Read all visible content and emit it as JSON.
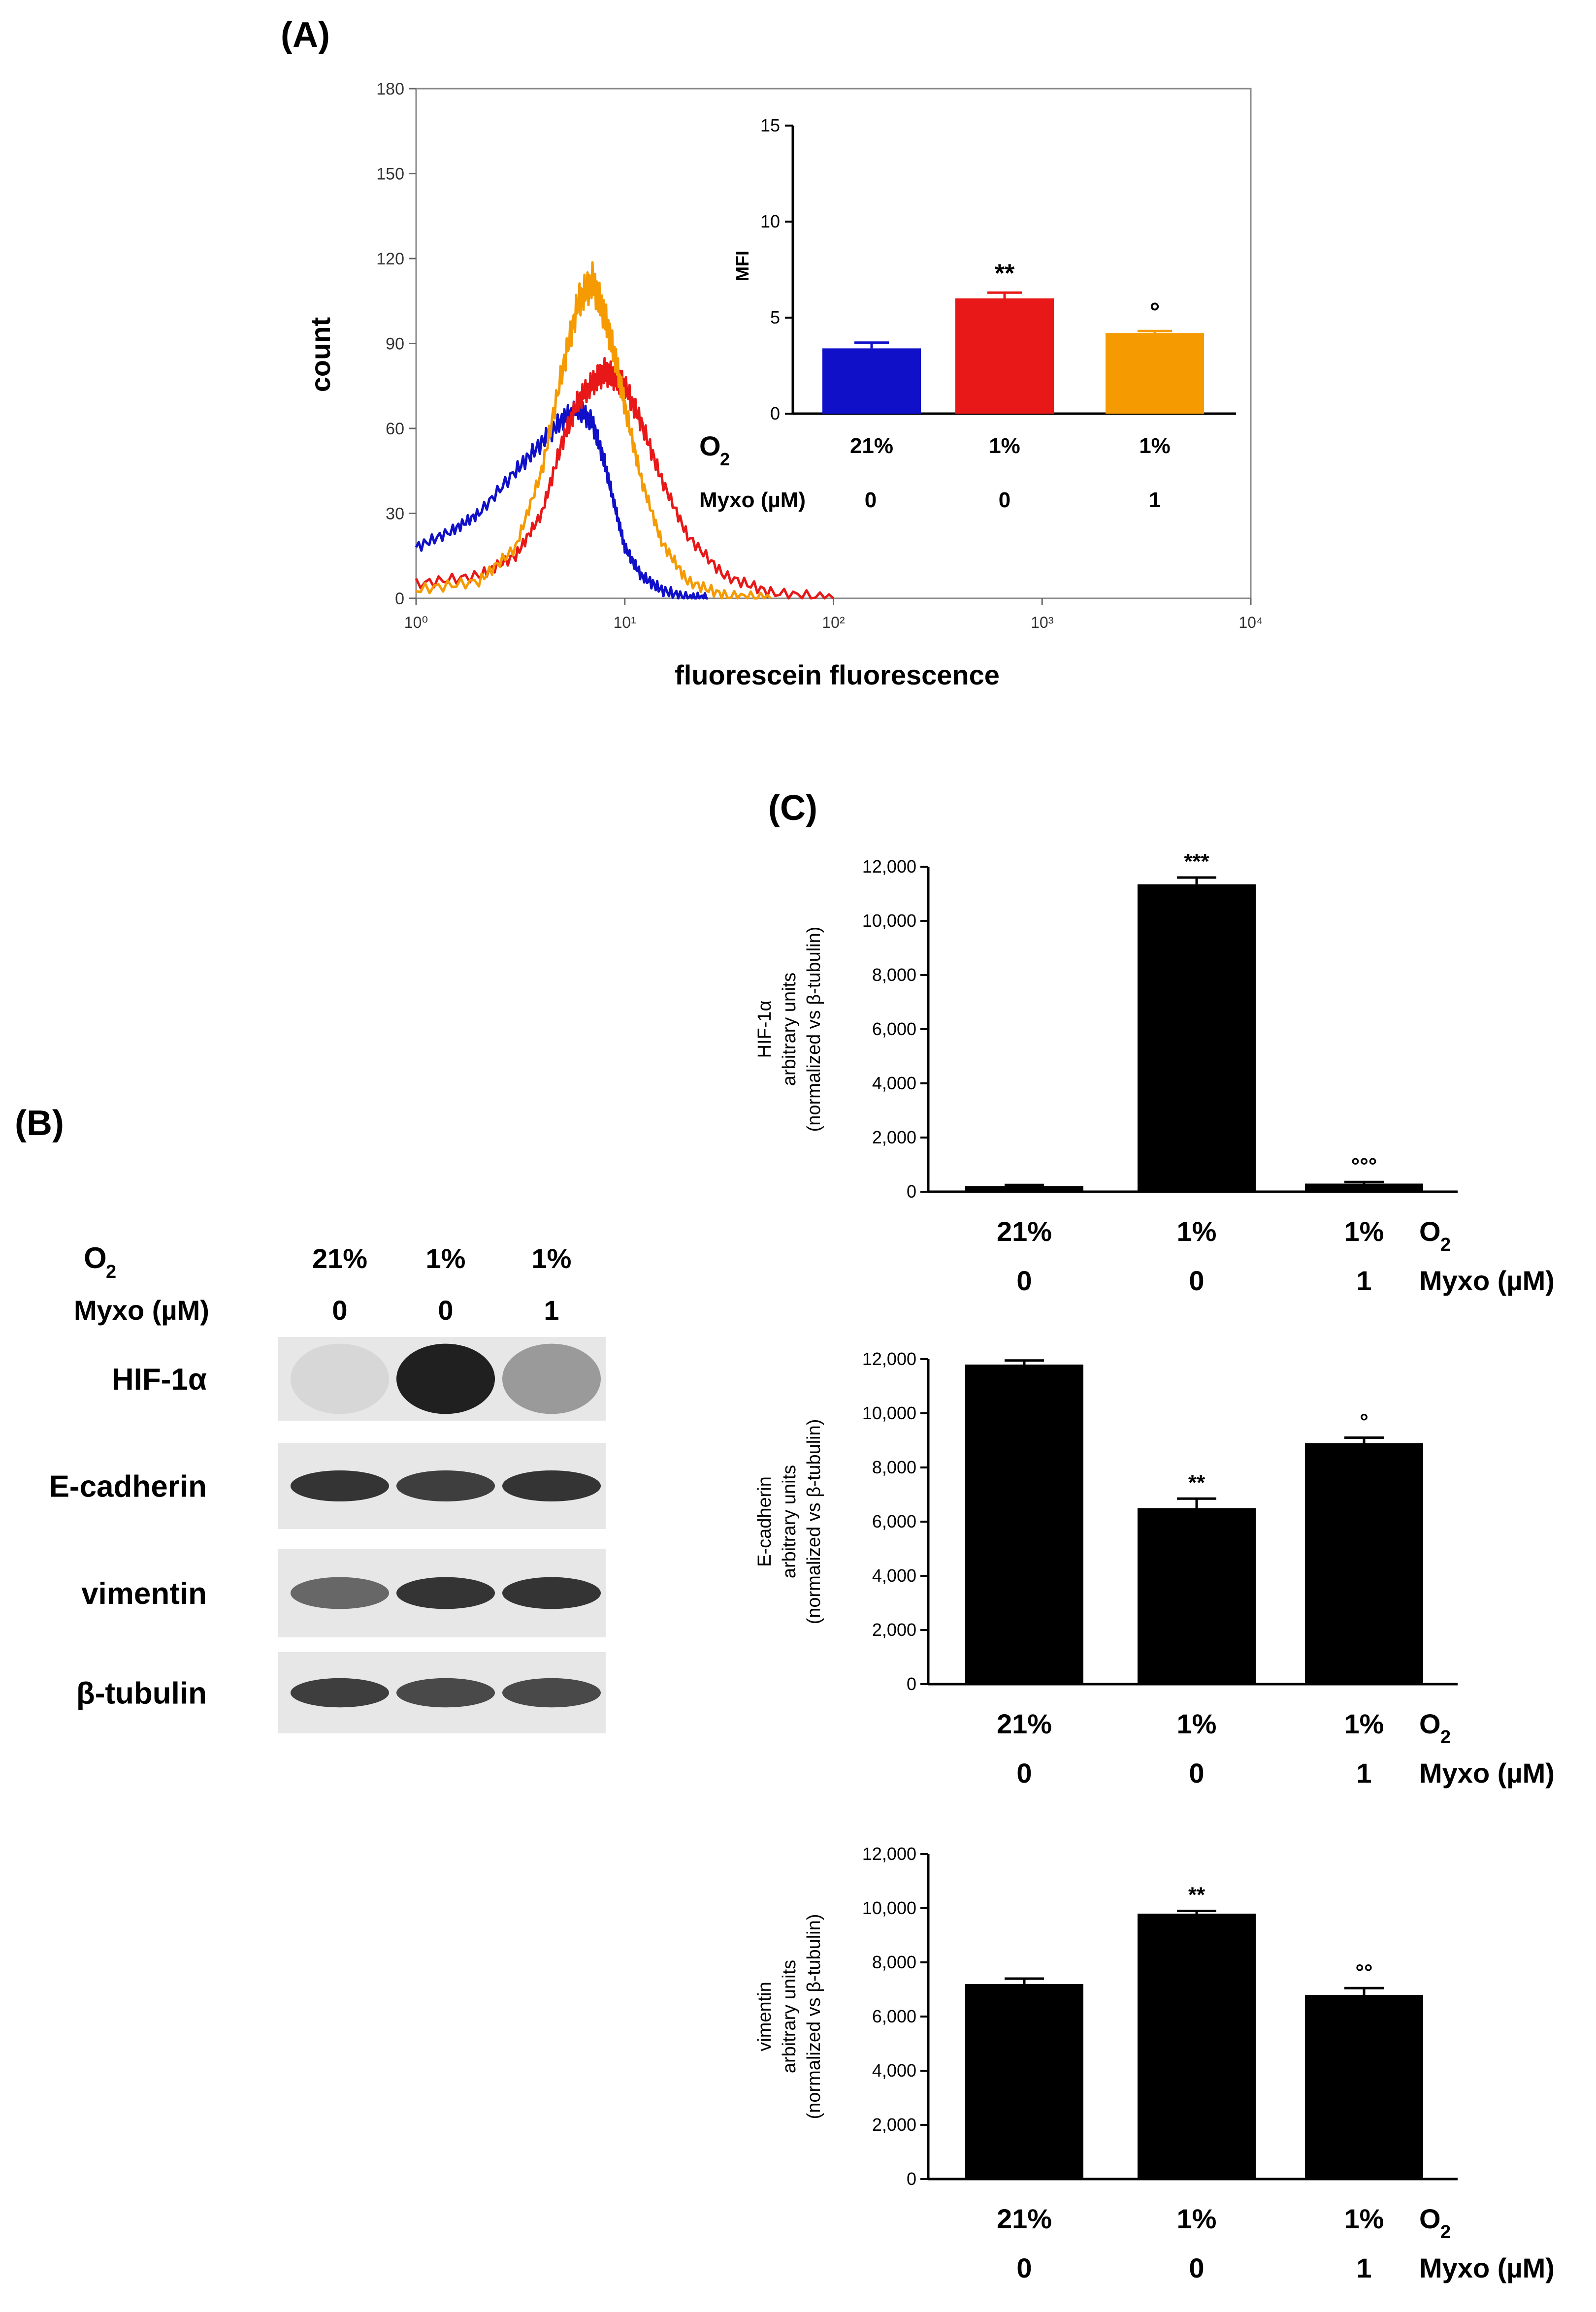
{
  "panels": {
    "a": "(A)",
    "b": "(B)",
    "c": "(C)"
  },
  "colors": {
    "blue": "#1010c8",
    "red": "#e81818",
    "orange": "#f59a00",
    "black": "#000000"
  },
  "chart_data": [
    {
      "id": "A-histogram",
      "type": "line",
      "title": "",
      "xlabel": "fluorescein fluorescence",
      "ylabel": "count",
      "xscale": "log",
      "xlim": [
        1,
        10000
      ],
      "ylim": [
        0,
        180
      ],
      "x_tick_labels": [
        "10⁰",
        "10¹",
        "10²",
        "10³",
        "10⁴"
      ],
      "y_ticks": [
        "0",
        "30",
        "60",
        "90",
        "120",
        "150",
        "180"
      ],
      "series": [
        {
          "name": "21% O2, Myxo 0",
          "color": "#1010c8",
          "x": [
            1,
            1.5,
            2,
            3,
            4,
            5,
            6,
            7,
            8,
            9,
            10,
            12,
            15,
            20,
            25
          ],
          "y": [
            18,
            24,
            30,
            45,
            55,
            63,
            67,
            62,
            48,
            32,
            18,
            8,
            3,
            0,
            0
          ]
        },
        {
          "name": "1% O2, Myxo 0",
          "color": "#e81818",
          "x": [
            1,
            2,
            3,
            4,
            5,
            6,
            7,
            8,
            9,
            10,
            12,
            15,
            20,
            30,
            50,
            100
          ],
          "y": [
            5,
            8,
            15,
            30,
            55,
            70,
            76,
            80,
            78,
            75,
            62,
            42,
            22,
            8,
            2,
            0
          ]
        },
        {
          "name": "1% O2, Myxo 1",
          "color": "#f59a00",
          "x": [
            1,
            2,
            3,
            4,
            5,
            6,
            7,
            8,
            9,
            10,
            12,
            15,
            20,
            30,
            50
          ],
          "y": [
            3,
            6,
            18,
            45,
            80,
            105,
            112,
            100,
            85,
            68,
            42,
            20,
            6,
            1,
            0
          ]
        }
      ]
    },
    {
      "id": "A-inset-MFI",
      "type": "bar",
      "ylabel": "MFI",
      "ylim": [
        0,
        15
      ],
      "y_ticks": [
        "0",
        "5",
        "10",
        "15"
      ],
      "categories": [
        "21%",
        "1%",
        "1%"
      ],
      "row_labels": {
        "o2": "O",
        "o2_sub": "2",
        "myxo": "Myxo (µM)"
      },
      "myxo": [
        "0",
        "0",
        "1"
      ],
      "values": [
        3.4,
        6.0,
        4.2
      ],
      "errors": [
        0.3,
        0.3,
        0.1
      ],
      "bar_colors": [
        "#1010c8",
        "#e81818",
        "#f59a00"
      ],
      "annotations": [
        "",
        "**",
        "°"
      ]
    },
    {
      "id": "C-HIF1a",
      "type": "bar",
      "ylabel_lines": [
        "HIF-1α",
        "arbitrary units",
        "(normalized vs β-tubulin)"
      ],
      "ylim": [
        0,
        12000
      ],
      "y_ticks": [
        "0",
        "2,000",
        "4,000",
        "6,000",
        "8,000",
        "10,000",
        "12,000"
      ],
      "categories": [
        "21%",
        "1%",
        "1%"
      ],
      "myxo": [
        "0",
        "0",
        "1"
      ],
      "values": [
        200,
        11350,
        300
      ],
      "errors": [
        50,
        250,
        60
      ],
      "annotations": [
        "",
        "***",
        "°°°"
      ],
      "row_labels": {
        "o2": "O",
        "o2_sub": "2",
        "myxo": "Myxo (µM)"
      }
    },
    {
      "id": "C-Ecadherin",
      "type": "bar",
      "ylabel_lines": [
        "E-cadherin",
        "arbitrary units",
        "(normalized vs β-tubulin)"
      ],
      "ylim": [
        0,
        12000
      ],
      "y_ticks": [
        "0",
        "2,000",
        "4,000",
        "6,000",
        "8,000",
        "10,000",
        "12,000"
      ],
      "categories": [
        "21%",
        "1%",
        "1%"
      ],
      "myxo": [
        "0",
        "0",
        "1"
      ],
      "values": [
        11800,
        6500,
        8900
      ],
      "errors": [
        150,
        350,
        200
      ],
      "annotations": [
        "",
        "**",
        "°"
      ],
      "row_labels": {
        "o2": "O",
        "o2_sub": "2",
        "myxo": "Myxo (µM)"
      }
    },
    {
      "id": "C-vimentin",
      "type": "bar",
      "ylabel_lines": [
        "vimentin",
        "arbitrary units",
        "(normalized vs β-tubulin)"
      ],
      "ylim": [
        0,
        12000
      ],
      "y_ticks": [
        "0",
        "2,000",
        "4,000",
        "6,000",
        "8,000",
        "10,000",
        "12,000"
      ],
      "categories": [
        "21%",
        "1%",
        "1%"
      ],
      "myxo": [
        "0",
        "0",
        "1"
      ],
      "values": [
        7200,
        9800,
        6800
      ],
      "errors": [
        200,
        100,
        250
      ],
      "annotations": [
        "",
        "**",
        "°°"
      ],
      "row_labels": {
        "o2": "O",
        "o2_sub": "2",
        "myxo": "Myxo (µM)"
      }
    }
  ],
  "blot": {
    "o2_label": "O",
    "o2_sub": "2",
    "myxo_label": "Myxo (µM)",
    "o2_values": [
      "21%",
      "1%",
      "1%"
    ],
    "myxo_values": [
      "0",
      "0",
      "1"
    ],
    "rows": [
      {
        "label": "HIF-1α",
        "intensity": [
          0.05,
          0.95,
          0.35
        ]
      },
      {
        "label": "E-cadherin",
        "intensity": [
          0.85,
          0.8,
          0.85
        ]
      },
      {
        "label": "vimentin",
        "intensity": [
          0.6,
          0.85,
          0.85
        ]
      },
      {
        "label": "β-tubulin",
        "intensity": [
          0.8,
          0.75,
          0.75
        ]
      }
    ]
  }
}
